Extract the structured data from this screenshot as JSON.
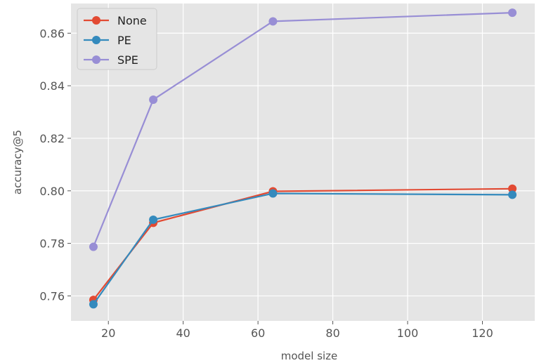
{
  "chart_data": {
    "type": "line",
    "title": "",
    "xlabel": "model size",
    "ylabel": "accuracy@5",
    "x": [
      16,
      32,
      64,
      128
    ],
    "xlim": [
      10,
      134
    ],
    "ylim": [
      0.7505,
      0.8713
    ],
    "xticks": [
      20,
      40,
      60,
      80,
      100,
      120
    ],
    "yticks": [
      0.76,
      0.78,
      0.8,
      0.82,
      0.84,
      0.86
    ],
    "ytick_labels": [
      "0.76",
      "0.78",
      "0.80",
      "0.82",
      "0.84",
      "0.86"
    ],
    "grid": true,
    "legend_position": "top-left",
    "series": [
      {
        "name": "None",
        "color": "#E24A33",
        "values": [
          0.7585,
          0.7878,
          0.7998,
          0.8008
        ]
      },
      {
        "name": "PE",
        "color": "#348ABD",
        "values": [
          0.7568,
          0.789,
          0.799,
          0.7985
        ]
      },
      {
        "name": "SPE",
        "color": "#988ED5",
        "values": [
          0.7787,
          0.8347,
          0.8645,
          0.8678
        ]
      }
    ]
  }
}
